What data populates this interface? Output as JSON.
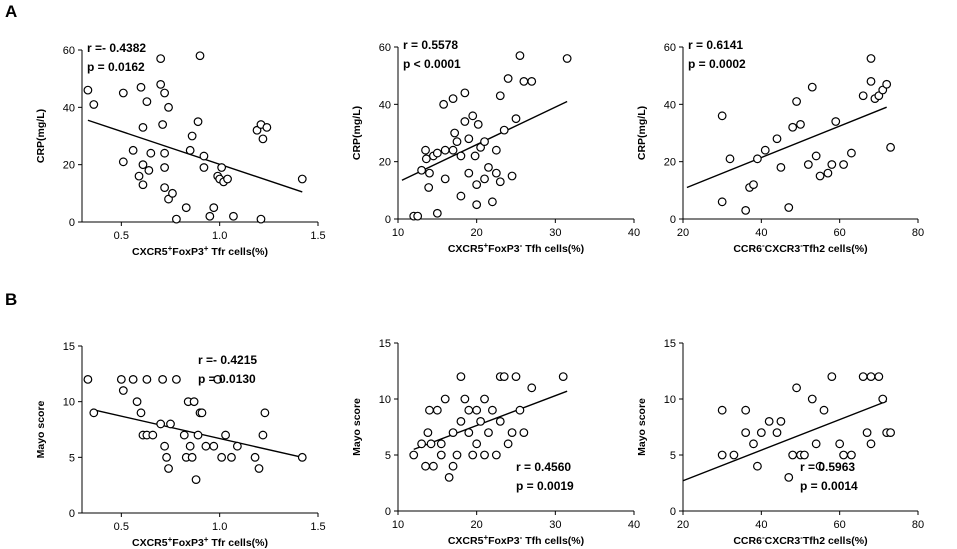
{
  "panel_labels": [
    "A",
    "B"
  ],
  "chart_data": [
    {
      "type": "scatter",
      "panel": "A",
      "xlabel": "CXCR5+FoxP3+ Tfr cells(%)",
      "xlabel_parts": [
        "CXCR5",
        "+",
        "FoxP3",
        "+",
        " Tfr cells(%)"
      ],
      "ylabel": "CRP(mg/L)",
      "xlim": [
        0.3,
        1.5
      ],
      "ylim": [
        0,
        60
      ],
      "xticks": [
        0.5,
        1.0,
        1.5
      ],
      "xtick_labels": [
        "0.5",
        "1.0",
        "1.5"
      ],
      "yticks": [
        0,
        20,
        40,
        60
      ],
      "ytick_labels": [
        "0",
        "20",
        "40",
        "60"
      ],
      "stat_r": "r =- 0.4382",
      "stat_p": "p = 0.0162",
      "stat_pos": "top-left",
      "fit": [
        [
          0.33,
          35.5
        ],
        [
          1.42,
          10.5
        ]
      ],
      "points": [
        [
          0.33,
          46
        ],
        [
          0.36,
          41
        ],
        [
          0.51,
          45
        ],
        [
          0.51,
          21
        ],
        [
          0.56,
          25
        ],
        [
          0.59,
          16
        ],
        [
          0.61,
          20
        ],
        [
          0.6,
          47
        ],
        [
          0.61,
          33
        ],
        [
          0.61,
          13
        ],
        [
          0.63,
          42
        ],
        [
          0.64,
          18
        ],
        [
          0.65,
          24
        ],
        [
          0.7,
          57
        ],
        [
          0.7,
          48
        ],
        [
          0.71,
          34
        ],
        [
          0.72,
          45
        ],
        [
          0.72,
          24
        ],
        [
          0.72,
          19
        ],
        [
          0.72,
          12
        ],
        [
          0.74,
          8
        ],
        [
          0.74,
          40
        ],
        [
          0.76,
          10
        ],
        [
          0.78,
          1
        ],
        [
          0.83,
          5
        ],
        [
          0.85,
          25
        ],
        [
          0.86,
          30
        ],
        [
          0.89,
          35
        ],
        [
          0.9,
          58
        ],
        [
          0.92,
          23
        ],
        [
          0.92,
          19
        ],
        [
          0.95,
          2
        ],
        [
          0.97,
          5
        ],
        [
          0.99,
          16
        ],
        [
          1.0,
          15
        ],
        [
          1.01,
          19
        ],
        [
          1.02,
          14
        ],
        [
          1.04,
          15
        ],
        [
          1.07,
          2
        ],
        [
          1.19,
          32
        ],
        [
          1.21,
          34
        ],
        [
          1.22,
          29
        ],
        [
          1.21,
          1
        ],
        [
          1.24,
          33
        ],
        [
          1.42,
          15
        ]
      ]
    },
    {
      "type": "scatter",
      "panel": "A",
      "xlabel": "CXCR5+FoxP3- Tfh cells(%)",
      "xlabel_parts": [
        "CXCR5",
        "+",
        "FoxP3",
        "-",
        " Tfh cells(%)"
      ],
      "ylabel": "CRP(mg/L)",
      "xlim": [
        10,
        40
      ],
      "ylim": [
        0,
        60
      ],
      "xticks": [
        10,
        20,
        30,
        40
      ],
      "xtick_labels": [
        "10",
        "20",
        "30",
        "40"
      ],
      "yticks": [
        0,
        20,
        40,
        60
      ],
      "ytick_labels": [
        "0",
        "20",
        "40",
        "60"
      ],
      "stat_r": "r = 0.5578",
      "stat_p": "p < 0.0001",
      "stat_pos": "top-left",
      "fit": [
        [
          10.5,
          13.5
        ],
        [
          31.5,
          41
        ]
      ],
      "points": [
        [
          12,
          1
        ],
        [
          12.5,
          1
        ],
        [
          13,
          17
        ],
        [
          13.5,
          24
        ],
        [
          13.6,
          21
        ],
        [
          13.9,
          11
        ],
        [
          14,
          16
        ],
        [
          14.5,
          22
        ],
        [
          15,
          23
        ],
        [
          15,
          2
        ],
        [
          15.8,
          40
        ],
        [
          16,
          24
        ],
        [
          16,
          14
        ],
        [
          17,
          42
        ],
        [
          17,
          24
        ],
        [
          17.2,
          30
        ],
        [
          17.5,
          27
        ],
        [
          18,
          8
        ],
        [
          18,
          22
        ],
        [
          18.5,
          44
        ],
        [
          18.5,
          34
        ],
        [
          19,
          28
        ],
        [
          19,
          16
        ],
        [
          19.5,
          36
        ],
        [
          19.8,
          22
        ],
        [
          20,
          12
        ],
        [
          20,
          5
        ],
        [
          20.2,
          33
        ],
        [
          20.5,
          25
        ],
        [
          21,
          27
        ],
        [
          21,
          14
        ],
        [
          21.5,
          18
        ],
        [
          22,
          6
        ],
        [
          22.5,
          24
        ],
        [
          22.5,
          16
        ],
        [
          23,
          13
        ],
        [
          23,
          43
        ],
        [
          23.5,
          31
        ],
        [
          24,
          49
        ],
        [
          24.5,
          15
        ],
        [
          25,
          35
        ],
        [
          25.5,
          57
        ],
        [
          26,
          48
        ],
        [
          27,
          48
        ],
        [
          31.5,
          56
        ]
      ]
    },
    {
      "type": "scatter",
      "panel": "A",
      "xlabel": "CCR6-CXCR3-Tfh2 cells(%)",
      "xlabel_parts": [
        "CCR6",
        "-",
        "CXCR3",
        "-",
        "Tfh2 cells(%)"
      ],
      "ylabel": "CRP(mg/L)",
      "xlim": [
        20,
        80
      ],
      "ylim": [
        0,
        60
      ],
      "xticks": [
        20,
        40,
        60,
        80
      ],
      "xtick_labels": [
        "20",
        "40",
        "60",
        "80"
      ],
      "yticks": [
        0,
        20,
        40,
        60
      ],
      "ytick_labels": [
        "0",
        "20",
        "40",
        "60"
      ],
      "stat_r": "r = 0.6141",
      "stat_p": "p = 0.0002",
      "stat_pos": "top-left",
      "fit": [
        [
          21,
          11
        ],
        [
          72,
          39
        ]
      ],
      "points": [
        [
          30,
          6
        ],
        [
          30,
          36
        ],
        [
          32,
          21
        ],
        [
          36,
          3
        ],
        [
          37,
          11
        ],
        [
          38,
          12
        ],
        [
          39,
          21
        ],
        [
          41,
          24
        ],
        [
          44,
          28
        ],
        [
          45,
          18
        ],
        [
          47,
          4
        ],
        [
          48,
          32
        ],
        [
          49,
          41
        ],
        [
          50,
          33
        ],
        [
          52,
          19
        ],
        [
          53,
          46
        ],
        [
          54,
          22
        ],
        [
          55,
          15
        ],
        [
          57,
          16
        ],
        [
          58,
          19
        ],
        [
          59,
          34
        ],
        [
          61,
          19
        ],
        [
          63,
          23
        ],
        [
          66,
          43
        ],
        [
          68,
          56
        ],
        [
          68,
          48
        ],
        [
          69,
          42
        ],
        [
          70,
          43
        ],
        [
          71,
          45
        ],
        [
          72,
          47
        ],
        [
          73,
          25
        ]
      ]
    },
    {
      "type": "scatter",
      "panel": "B",
      "xlabel": "CXCR5+FoxP3+ Tfr cells(%)",
      "xlabel_parts": [
        "CXCR5",
        "+",
        "FoxP3",
        "+",
        " Tfr cells(%)"
      ],
      "ylabel": "Mayo score",
      "xlim": [
        0.3,
        1.5
      ],
      "ylim": [
        0,
        15
      ],
      "xticks": [
        0.5,
        1.0,
        1.5
      ],
      "xtick_labels": [
        "0.5",
        "1.0",
        "1.5"
      ],
      "yticks": [
        0,
        5,
        10,
        15
      ],
      "ytick_labels": [
        "0",
        "5",
        "10",
        "15"
      ],
      "stat_r": "r =- 0.4215",
      "stat_p": "p = 0.0130",
      "stat_pos": "top-right",
      "fit": [
        [
          0.35,
          9.3
        ],
        [
          1.42,
          5
        ]
      ],
      "points": [
        [
          0.33,
          12
        ],
        [
          0.36,
          9
        ],
        [
          0.5,
          12
        ],
        [
          0.51,
          11
        ],
        [
          0.56,
          12
        ],
        [
          0.58,
          10
        ],
        [
          0.6,
          9
        ],
        [
          0.61,
          7
        ],
        [
          0.63,
          12
        ],
        [
          0.63,
          7
        ],
        [
          0.66,
          7
        ],
        [
          0.71,
          12
        ],
        [
          0.7,
          8
        ],
        [
          0.72,
          6
        ],
        [
          0.73,
          5
        ],
        [
          0.74,
          4
        ],
        [
          0.75,
          8
        ],
        [
          0.78,
          12
        ],
        [
          0.82,
          7
        ],
        [
          0.83,
          5
        ],
        [
          0.84,
          10
        ],
        [
          0.85,
          6
        ],
        [
          0.86,
          5
        ],
        [
          0.87,
          10
        ],
        [
          0.88,
          3
        ],
        [
          0.89,
          7
        ],
        [
          0.9,
          9
        ],
        [
          0.91,
          9
        ],
        [
          0.93,
          6
        ],
        [
          0.97,
          6
        ],
        [
          0.99,
          12
        ],
        [
          1.01,
          5
        ],
        [
          1.03,
          7
        ],
        [
          1.06,
          5
        ],
        [
          1.09,
          6
        ],
        [
          1.18,
          5
        ],
        [
          1.2,
          4
        ],
        [
          1.22,
          7
        ],
        [
          1.23,
          9
        ],
        [
          1.42,
          5
        ]
      ]
    },
    {
      "type": "scatter",
      "panel": "B",
      "xlabel": "CXCR5+FoxP3- Tfh cells(%)",
      "xlabel_parts": [
        "CXCR5",
        "+",
        "FoxP3",
        "-",
        " Tfh cells(%)"
      ],
      "ylabel": "Mayo score",
      "xlim": [
        10,
        40
      ],
      "ylim": [
        0,
        15
      ],
      "xticks": [
        10,
        20,
        30,
        40
      ],
      "xtick_labels": [
        "10",
        "20",
        "30",
        "40"
      ],
      "yticks": [
        0,
        5,
        10,
        15
      ],
      "ytick_labels": [
        "0",
        "5",
        "10",
        "15"
      ],
      "stat_r": "r = 0.4560",
      "stat_p": "p = 0.0019",
      "stat_pos": "bottom-right",
      "fit": [
        [
          12,
          5.5
        ],
        [
          31.5,
          10.7
        ]
      ],
      "points": [
        [
          12,
          5
        ],
        [
          13,
          6
        ],
        [
          13.5,
          4
        ],
        [
          13.8,
          7
        ],
        [
          14,
          9
        ],
        [
          14.2,
          6
        ],
        [
          14.5,
          4
        ],
        [
          15,
          9
        ],
        [
          15.5,
          6
        ],
        [
          15.5,
          5
        ],
        [
          16,
          10
        ],
        [
          16.5,
          3
        ],
        [
          17,
          4
        ],
        [
          17,
          7
        ],
        [
          17.5,
          5
        ],
        [
          18,
          12
        ],
        [
          18,
          8
        ],
        [
          18.5,
          10
        ],
        [
          19,
          9
        ],
        [
          19,
          7
        ],
        [
          19.5,
          5
        ],
        [
          20,
          6
        ],
        [
          20,
          9
        ],
        [
          20.5,
          8
        ],
        [
          21,
          10
        ],
        [
          21,
          5
        ],
        [
          21.5,
          7
        ],
        [
          22,
          9
        ],
        [
          22.5,
          5
        ],
        [
          23,
          12
        ],
        [
          23,
          8
        ],
        [
          23.5,
          12
        ],
        [
          24,
          6
        ],
        [
          24.5,
          7
        ],
        [
          25,
          12
        ],
        [
          25.5,
          9
        ],
        [
          26,
          7
        ],
        [
          27,
          11
        ],
        [
          31,
          12
        ]
      ]
    },
    {
      "type": "scatter",
      "panel": "B",
      "xlabel": "CCR6-CXCR3-Tfh2 cells(%)",
      "xlabel_parts": [
        "CCR6",
        "-",
        "CXCR3",
        "-",
        "Tfh2 cells(%)"
      ],
      "ylabel": "Mayo score",
      "xlim": [
        20,
        80
      ],
      "ylim": [
        0,
        15
      ],
      "xticks": [
        20,
        40,
        60,
        80
      ],
      "xtick_labels": [
        "20",
        "40",
        "60",
        "80"
      ],
      "yticks": [
        0,
        5,
        10,
        15
      ],
      "ytick_labels": [
        "0",
        "5",
        "10",
        "15"
      ],
      "stat_r": "r = 0.5963",
      "stat_p": "p = 0.0014",
      "stat_pos": "bottom-right",
      "fit": [
        [
          20,
          2.7
        ],
        [
          72,
          9.8
        ]
      ],
      "points": [
        [
          30,
          5
        ],
        [
          30,
          9
        ],
        [
          33,
          5
        ],
        [
          36,
          7
        ],
        [
          36,
          9
        ],
        [
          38,
          6
        ],
        [
          39,
          4
        ],
        [
          40,
          7
        ],
        [
          42,
          8
        ],
        [
          44,
          7
        ],
        [
          45,
          8
        ],
        [
          47,
          3
        ],
        [
          48,
          5
        ],
        [
          49,
          11
        ],
        [
          50,
          5
        ],
        [
          51,
          5
        ],
        [
          53,
          10
        ],
        [
          54,
          6
        ],
        [
          55,
          4
        ],
        [
          56,
          9
        ],
        [
          58,
          12
        ],
        [
          60,
          6
        ],
        [
          61,
          5
        ],
        [
          63,
          5
        ],
        [
          66,
          12
        ],
        [
          67,
          7
        ],
        [
          68,
          6
        ],
        [
          68,
          12
        ],
        [
          70,
          12
        ],
        [
          71,
          10
        ],
        [
          72,
          7
        ],
        [
          73,
          7
        ]
      ]
    }
  ]
}
